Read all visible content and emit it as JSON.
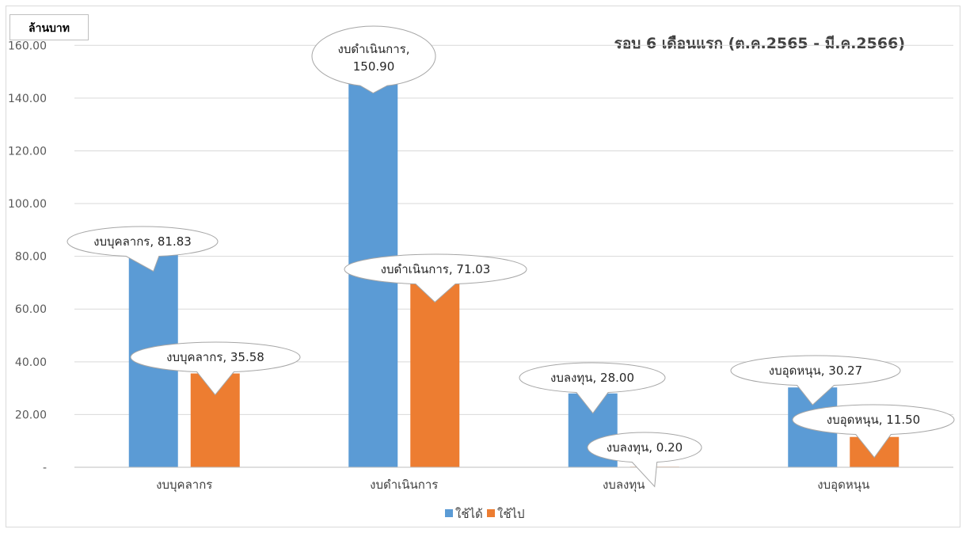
{
  "chart_data": {
    "type": "bar",
    "title": "รอบ 6 เดือนแรก (ต.ค.2565 - มี.ค.2566)",
    "unit_label": "ล้านบาท",
    "xlabel": "",
    "ylabel": "",
    "ylim": [
      0,
      170
    ],
    "y_ticks": [
      0,
      20,
      40,
      60,
      80,
      100,
      120,
      140,
      160
    ],
    "y_tick_labels": [
      "-",
      "20.00",
      "40.00",
      "60.00",
      "80.00",
      "100.00",
      "120.00",
      "140.00",
      "160.00"
    ],
    "categories": [
      "งบบุคลากร",
      "งบดำเนินการ",
      "งบลงทุน",
      "งบอุดหนุน"
    ],
    "series": [
      {
        "name": "ใช้ได้",
        "color": "#5b9bd5",
        "values": [
          81.83,
          150.9,
          28.0,
          30.27
        ]
      },
      {
        "name": "ใช้ไป",
        "color": "#ed7d31",
        "values": [
          35.58,
          71.03,
          0.2,
          11.5
        ]
      }
    ],
    "data_labels": [
      [
        "งบบุคลากร, 81.83",
        "งบดำเนินการ, 150.90",
        "งบลงทุน, 28.00",
        "งบอุดหนุน, 30.27"
      ],
      [
        "งบบุคลากร, 35.58",
        "งบดำเนินการ, 71.03",
        "งบลงทุน, 0.20",
        "งบอุดหนุน, 11.50"
      ]
    ],
    "gridlines": true,
    "legend_position": "bottom"
  }
}
